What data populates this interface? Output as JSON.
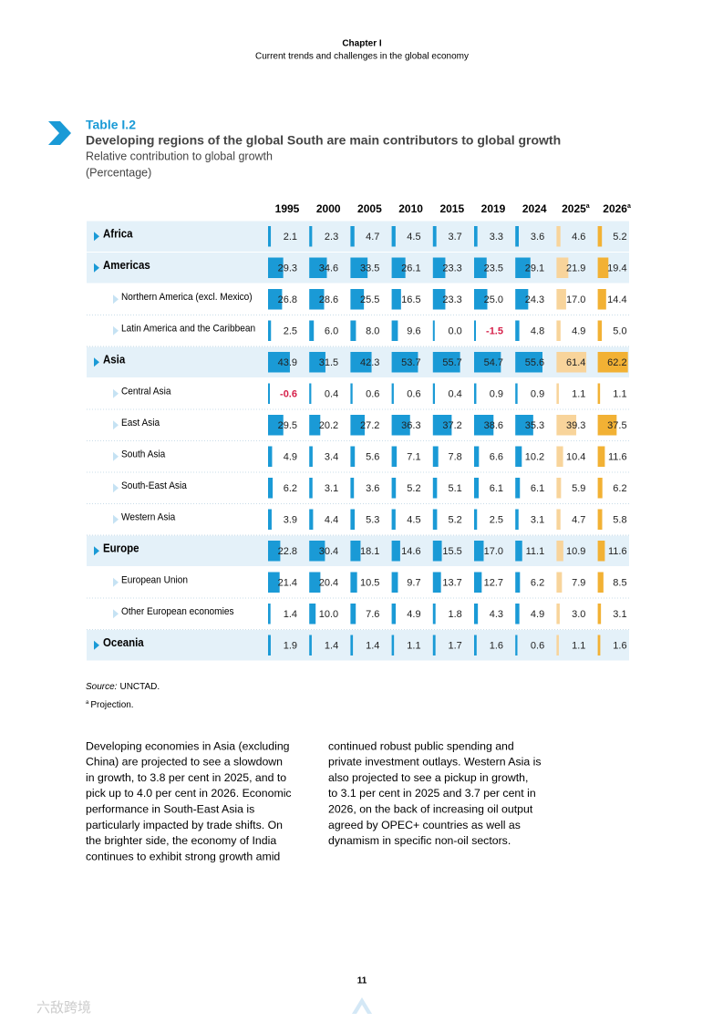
{
  "header": {
    "chapter": "Chapter I",
    "subtitle": "Current trends and challenges in the global economy"
  },
  "table": {
    "label": "Table I.2",
    "title": "Developing regions of the global South are main contributors to global growth",
    "subtitle": "Relative contribution to global growth",
    "unit": "(Percentage)",
    "bar_color": "#1a9ad6",
    "negative_color": "#d6204a",
    "columns": [
      {
        "year": "1995"
      },
      {
        "year": "2000"
      },
      {
        "year": "2005"
      },
      {
        "year": "2010"
      },
      {
        "year": "2015"
      },
      {
        "year": "2019"
      },
      {
        "year": "2024"
      },
      {
        "year": "2025",
        "note": "a",
        "color": "#f8d49b"
      },
      {
        "year": "2026",
        "note": "a",
        "color": "#f2b134"
      }
    ],
    "rows": [
      {
        "label": "Africa",
        "level": "region",
        "values": [
          2.1,
          2.3,
          4.7,
          4.5,
          3.7,
          3.3,
          3.6,
          4.6,
          5.2
        ],
        "value_labels": [
          "2.1",
          "2.3",
          "4.7",
          "4.5",
          "3.7",
          "3.3",
          "3.6",
          "4.6",
          "5.2"
        ]
      },
      {
        "label": "Americas",
        "level": "region",
        "values": [
          29.3,
          34.6,
          33.5,
          26.1,
          23.3,
          23.5,
          29.1,
          21.9,
          19.4
        ],
        "value_labels": [
          "29.3",
          "34.6",
          "33.5",
          "26.1",
          "23.3",
          "23.5",
          "29.1",
          "21.9",
          "19.4"
        ]
      },
      {
        "label": "Northern America (excl. Mexico)",
        "level": "sub",
        "values": [
          26.8,
          28.6,
          25.5,
          16.5,
          23.3,
          25.0,
          24.3,
          17.0,
          14.4
        ],
        "value_labels": [
          "26.8",
          "28.6",
          "25.5",
          "16.5",
          "23.3",
          "25.0",
          "24.3",
          "17.0",
          "14.4"
        ]
      },
      {
        "label": "Latin America and the Caribbean",
        "level": "sub",
        "values": [
          2.5,
          6.0,
          8.0,
          9.6,
          0.0,
          -1.5,
          4.8,
          4.9,
          5.0
        ],
        "value_labels": [
          "2.5",
          "6.0",
          "8.0",
          "9.6",
          "0.0",
          "-1.5",
          "4.8",
          "4.9",
          "5.0"
        ]
      },
      {
        "label": "Asia",
        "level": "region",
        "values": [
          43.9,
          31.5,
          42.3,
          53.7,
          55.7,
          54.7,
          55.6,
          61.4,
          62.2
        ],
        "value_labels": [
          "43.9",
          "31.5",
          "42.3",
          "53.7",
          "55.7",
          "54.7",
          "55.6",
          "61.4",
          "62.2"
        ]
      },
      {
        "label": "Central Asia",
        "level": "sub",
        "values": [
          -0.6,
          0.4,
          0.6,
          0.6,
          0.4,
          0.9,
          0.9,
          1.1,
          1.1
        ],
        "value_labels": [
          "-0.6",
          "0.4",
          "0.6",
          "0.6",
          "0.4",
          "0.9",
          "0.9",
          "1.1",
          "1.1"
        ]
      },
      {
        "label": "East Asia",
        "level": "sub",
        "values": [
          29.5,
          20.2,
          27.2,
          36.3,
          37.2,
          38.6,
          35.3,
          39.3,
          37.5
        ],
        "value_labels": [
          "29.5",
          "20.2",
          "27.2",
          "36.3",
          "37.2",
          "38.6",
          "35.3",
          "39.3",
          "37.5"
        ]
      },
      {
        "label": "South Asia",
        "level": "sub",
        "values": [
          4.9,
          3.4,
          5.6,
          7.1,
          7.8,
          6.6,
          10.2,
          10.4,
          11.6
        ],
        "value_labels": [
          "4.9",
          "3.4",
          "5.6",
          "7.1",
          "7.8",
          "6.6",
          "10.2",
          "10.4",
          "11.6"
        ]
      },
      {
        "label": "South-East Asia",
        "level": "sub",
        "values": [
          6.2,
          3.1,
          3.6,
          5.2,
          5.1,
          6.1,
          6.1,
          5.9,
          6.2
        ],
        "value_labels": [
          "6.2",
          "3.1",
          "3.6",
          "5.2",
          "5.1",
          "6.1",
          "6.1",
          "5.9",
          "6.2"
        ]
      },
      {
        "label": "Western Asia",
        "level": "sub",
        "values": [
          3.9,
          4.4,
          5.3,
          4.5,
          5.2,
          2.5,
          3.1,
          4.7,
          5.8
        ],
        "value_labels": [
          "3.9",
          "4.4",
          "5.3",
          "4.5",
          "5.2",
          "2.5",
          "3.1",
          "4.7",
          "5.8"
        ]
      },
      {
        "label": "Europe",
        "level": "region",
        "values": [
          22.8,
          30.4,
          18.1,
          14.6,
          15.5,
          17.0,
          11.1,
          10.9,
          11.6
        ],
        "value_labels": [
          "22.8",
          "30.4",
          "18.1",
          "14.6",
          "15.5",
          "17.0",
          "11.1",
          "10.9",
          "11.6"
        ]
      },
      {
        "label": "European Union",
        "level": "sub",
        "values": [
          21.4,
          20.4,
          10.5,
          9.7,
          13.7,
          12.7,
          6.2,
          7.9,
          8.5
        ],
        "value_labels": [
          "21.4",
          "20.4",
          "10.5",
          "9.7",
          "13.7",
          "12.7",
          "6.2",
          "7.9",
          "8.5"
        ]
      },
      {
        "label": "Other European economies",
        "level": "sub",
        "values": [
          1.4,
          10.0,
          7.6,
          4.9,
          1.8,
          4.3,
          4.9,
          3.0,
          3.1
        ],
        "value_labels": [
          "1.4",
          "10.0",
          "7.6",
          "4.9",
          "1.8",
          "4.3",
          "4.9",
          "3.0",
          "3.1"
        ]
      },
      {
        "label": "Oceania",
        "level": "region",
        "values": [
          1.9,
          1.4,
          1.4,
          1.1,
          1.7,
          1.6,
          0.6,
          1.1,
          1.6
        ],
        "value_labels": [
          "1.9",
          "1.4",
          "1.4",
          "1.1",
          "1.7",
          "1.6",
          "0.6",
          "1.1",
          "1.6"
        ]
      }
    ]
  },
  "notes": {
    "source_label": "Source:",
    "source": "UNCTAD.",
    "projection_mark": "a",
    "projection": "Projection."
  },
  "body": {
    "left": [
      "Developing economies in Asia (excluding",
      "China) are projected to see a slowdown",
      "in growth, to 3.8 per cent in 2025, and to",
      "pick up to 4.0 per cent in 2026. Economic",
      "performance in South-East Asia is",
      "particularly impacted by trade shifts. On",
      "the brighter side, the economy of India",
      "continues to exhibit strong growth amid"
    ],
    "right": [
      "continued robust public spending and",
      "private investment outlays. Western Asia is",
      "also projected to see a pickup in growth,",
      "to 3.1 per cent in 2025 and 3.7 per cent in",
      "2026, on the back of increasing oil output",
      "agreed by OPEC+ countries as well as",
      "dynamism in specific non-oil sectors."
    ]
  },
  "footer": {
    "page": "11",
    "watermark": "六敌跨境"
  }
}
